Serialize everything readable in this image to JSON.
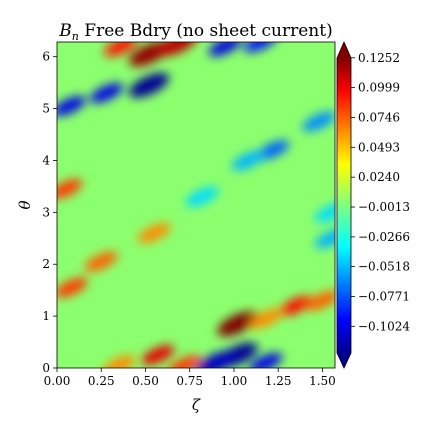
{
  "chart_data": {
    "type": "heatmap",
    "title_symbol": "B",
    "title_subscript": "n",
    "title_rest": " Free Bdry (no sheet current)",
    "xlabel": "ζ",
    "ylabel": "θ",
    "xlim": [
      0,
      1.571
    ],
    "ylim": [
      0,
      6.283
    ],
    "x_ticks": [
      "0.00",
      "0.25",
      "0.50",
      "0.75",
      "1.00",
      "1.25",
      "1.50"
    ],
    "x_tick_values": [
      0.0,
      0.25,
      0.5,
      0.75,
      1.0,
      1.25,
      1.5
    ],
    "y_ticks": [
      "0",
      "1",
      "2",
      "3",
      "4",
      "5",
      "6"
    ],
    "y_tick_values": [
      0,
      1,
      2,
      3,
      4,
      5,
      6
    ],
    "colormap": "jet",
    "color_range": [
      -0.125,
      0.125
    ],
    "colorbar_extend": "both",
    "colorbar_ticks": [
      "0.1252",
      "0.0999",
      "0.0746",
      "0.0493",
      "0.0240",
      "−0.0013",
      "−0.0266",
      "−0.0518",
      "−0.0771",
      "−0.1024"
    ],
    "colorbar_tick_values": [
      0.1252,
      0.0999,
      0.0746,
      0.0493,
      0.024,
      -0.0013,
      -0.0266,
      -0.0518,
      -0.0771,
      -0.1024
    ],
    "features": [
      {
        "zeta": 0.52,
        "theta": 6.05,
        "value": 0.12
      },
      {
        "zeta": 0.68,
        "theta": 6.25,
        "value": 0.11
      },
      {
        "zeta": 0.36,
        "theta": 6.2,
        "value": 0.09
      },
      {
        "zeta": 0.95,
        "theta": 6.2,
        "value": -0.1
      },
      {
        "zeta": 1.15,
        "theta": 6.28,
        "value": -0.09
      },
      {
        "zeta": 0.52,
        "theta": 5.45,
        "value": -0.12
      },
      {
        "zeta": 0.28,
        "theta": 5.3,
        "value": -0.1
      },
      {
        "zeta": 0.07,
        "theta": 5.05,
        "value": -0.1
      },
      {
        "zeta": 1.48,
        "theta": 4.75,
        "value": -0.06
      },
      {
        "zeta": 1.22,
        "theta": 4.2,
        "value": -0.07
      },
      {
        "zeta": 1.08,
        "theta": 4.0,
        "value": -0.05
      },
      {
        "zeta": 0.82,
        "theta": 3.3,
        "value": -0.04
      },
      {
        "zeta": 0.05,
        "theta": 3.45,
        "value": 0.08
      },
      {
        "zeta": 0.25,
        "theta": 2.05,
        "value": 0.07
      },
      {
        "zeta": 0.55,
        "theta": 2.6,
        "value": 0.06
      },
      {
        "zeta": 0.08,
        "theta": 1.55,
        "value": 0.08
      },
      {
        "zeta": 1.02,
        "theta": 0.85,
        "value": 0.125
      },
      {
        "zeta": 1.35,
        "theta": 1.2,
        "value": 0.09
      },
      {
        "zeta": 1.5,
        "theta": 1.3,
        "value": 0.07
      },
      {
        "zeta": 1.18,
        "theta": 0.95,
        "value": 0.06
      },
      {
        "zeta": 1.02,
        "theta": 0.25,
        "value": -0.12
      },
      {
        "zeta": 0.9,
        "theta": 0.1,
        "value": -0.11
      },
      {
        "zeta": 1.18,
        "theta": 0.1,
        "value": -0.1
      },
      {
        "zeta": 0.57,
        "theta": 0.25,
        "value": 0.1
      },
      {
        "zeta": 0.72,
        "theta": 0.05,
        "value": 0.08
      },
      {
        "zeta": 0.35,
        "theta": 0.05,
        "value": 0.06
      },
      {
        "zeta": 1.55,
        "theta": 2.5,
        "value": -0.05
      },
      {
        "zeta": 1.55,
        "theta": 3.0,
        "value": -0.04
      }
    ]
  }
}
